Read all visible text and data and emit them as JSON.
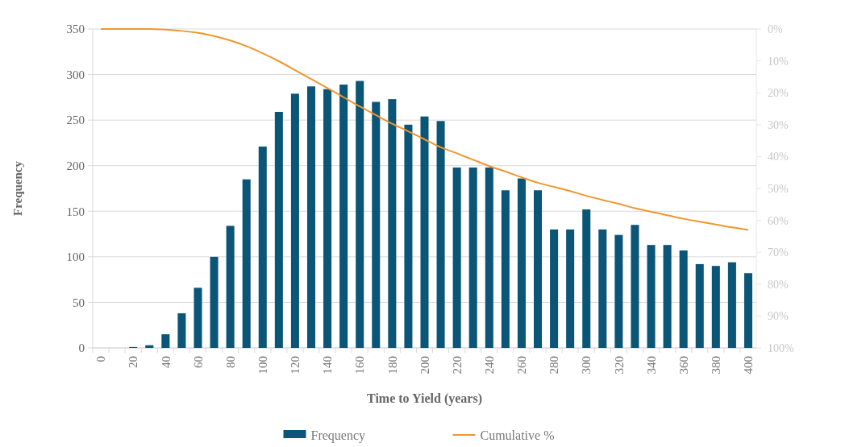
{
  "chart_data": {
    "type": "bar",
    "xlabel": "Time to Yield (years)",
    "ylabel": "Frequency",
    "categories": [
      "0",
      null,
      "20",
      null,
      "40",
      null,
      "60",
      null,
      "80",
      null,
      "100",
      null,
      "120",
      null,
      "140",
      null,
      "160",
      null,
      "180",
      null,
      "200",
      null,
      "220",
      null,
      "240",
      null,
      "260",
      null,
      "280",
      null,
      "300",
      null,
      "320",
      null,
      "340",
      null,
      "360",
      null,
      "380",
      null,
      "400"
    ],
    "series": [
      {
        "name": "Frequency",
        "color": "#0b5577",
        "values": [
          0,
          0,
          1,
          3,
          15,
          38,
          66,
          100,
          134,
          185,
          221,
          259,
          279,
          287,
          284,
          289,
          293,
          270,
          273,
          245,
          254,
          249,
          198,
          198,
          198,
          173,
          186,
          173,
          130,
          130,
          152,
          130,
          124,
          135,
          113,
          113,
          107,
          92,
          90,
          94,
          82
        ]
      },
      {
        "name": "Cumulative %",
        "type": "line",
        "axis": "y2",
        "color": "#f0962e",
        "values": [
          0,
          0,
          0,
          0,
          0.2,
          0.6,
          1.2,
          2.2,
          3.6,
          5.4,
          7.6,
          10.1,
          12.9,
          15.7,
          18.5,
          21.4,
          24.3,
          27.0,
          29.7,
          32.1,
          34.6,
          37.1,
          39.0,
          41.0,
          43.0,
          44.7,
          46.5,
          48.2,
          49.5,
          50.8,
          52.3,
          53.6,
          54.8,
          56.2,
          57.3,
          58.4,
          59.5,
          60.4,
          61.3,
          62.2,
          63.0
        ]
      }
    ],
    "ylim": [
      0,
      350
    ],
    "yticks": [
      0,
      50,
      100,
      150,
      200,
      250,
      300,
      350
    ],
    "y2lim": [
      100,
      0
    ],
    "y2ticks": [
      {
        "value": 0,
        "label": "0%"
      },
      {
        "value": 10,
        "label": "10%"
      },
      {
        "value": 20,
        "label": "20%"
      },
      {
        "value": 30,
        "label": "30%"
      },
      {
        "value": 40,
        "label": "40%"
      },
      {
        "value": 50,
        "label": "50%"
      },
      {
        "value": 60,
        "label": "60%"
      },
      {
        "value": 70,
        "label": "70%"
      },
      {
        "value": 80,
        "label": "80%"
      },
      {
        "value": 90,
        "label": "90%"
      },
      {
        "value": 100,
        "label": "100%"
      }
    ],
    "grid": "y",
    "legend": "bottom",
    "marker": "none"
  }
}
